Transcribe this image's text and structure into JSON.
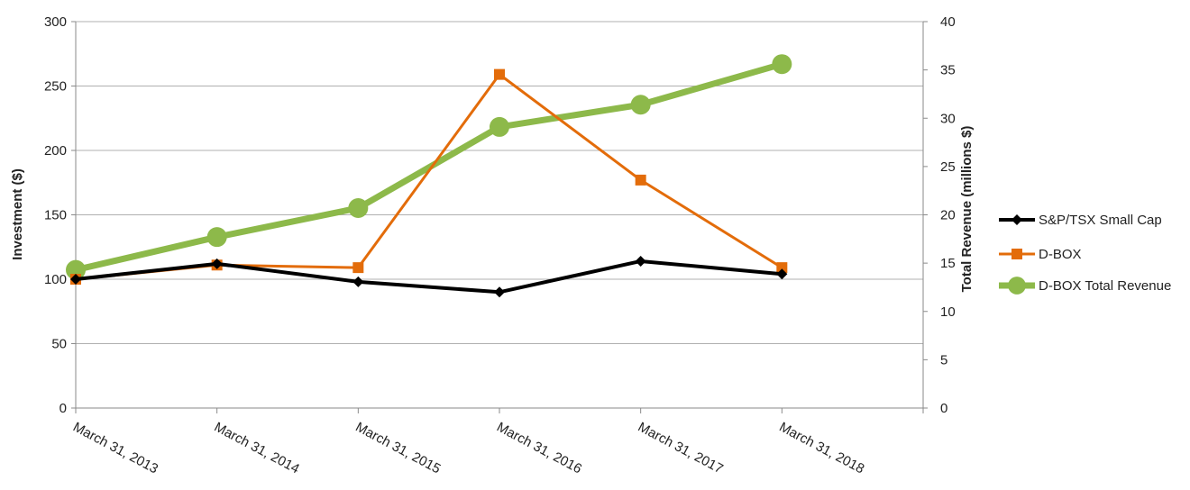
{
  "chart_data": {
    "type": "line",
    "categories": [
      "March 31, 2013",
      "March 31, 2014",
      "March 31, 2015",
      "March 31, 2016",
      "March 31, 2017",
      "March 31, 2018"
    ],
    "ylabel": "Investment ($)",
    "y2label": "Total Revenue (millions $)",
    "ylim": [
      0,
      300
    ],
    "y2lim": [
      0,
      40
    ],
    "yticks": [
      0,
      50,
      100,
      150,
      200,
      250,
      300
    ],
    "y2ticks": [
      0,
      5,
      10,
      15,
      20,
      25,
      30,
      35,
      40
    ],
    "grid": true,
    "legend_position": "right",
    "series": [
      {
        "name": "S&P/TSX Small Cap",
        "axis": "left",
        "color": "#000000",
        "marker": "diamond",
        "values": [
          100,
          112,
          98,
          90,
          114,
          104
        ]
      },
      {
        "name": "D-BOX",
        "axis": "left",
        "color": "#E36C0A",
        "marker": "square",
        "values": [
          100,
          111,
          109,
          259,
          177,
          109
        ]
      },
      {
        "name": "D-BOX Total Revenue",
        "axis": "right",
        "color": "#8DB94A",
        "marker": "circle",
        "values": [
          14.3,
          17.7,
          20.7,
          29.1,
          31.4,
          35.6
        ]
      }
    ]
  }
}
